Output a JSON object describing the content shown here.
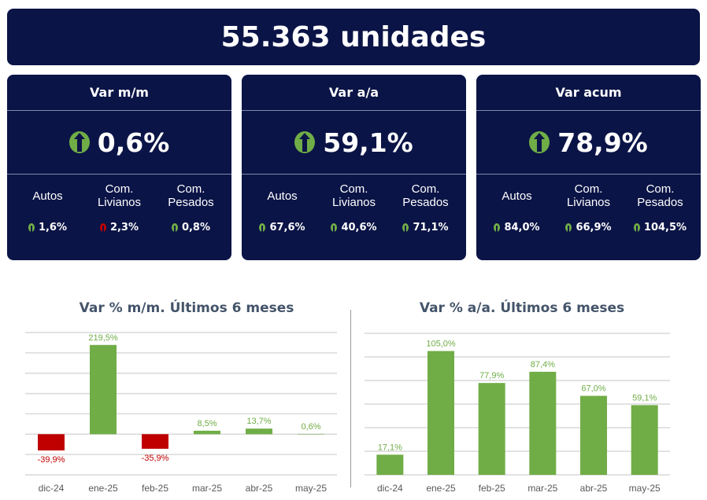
{
  "banner": {
    "title": "55.363 unidades"
  },
  "cards": [
    {
      "title": "Var m/m",
      "value": "0,6%",
      "trend": "up",
      "subs": [
        {
          "label": "Autos",
          "value": "1,6%",
          "trend": "up"
        },
        {
          "label": "Com. Livianos",
          "value": "2,3%",
          "trend": "down"
        },
        {
          "label": "Com. Pesados",
          "value": "0,8%",
          "trend": "up"
        }
      ]
    },
    {
      "title": "Var a/a",
      "value": "59,1%",
      "trend": "up",
      "subs": [
        {
          "label": "Autos",
          "value": "67,6%",
          "trend": "up"
        },
        {
          "label": "Com. Livianos",
          "value": "40,6%",
          "trend": "up"
        },
        {
          "label": "Com. Pesados",
          "value": "71,1%",
          "trend": "up"
        }
      ]
    },
    {
      "title": "Var acum",
      "value": "78,9%",
      "trend": "up",
      "subs": [
        {
          "label": "Autos",
          "value": "84,0%",
          "trend": "up"
        },
        {
          "label": "Com. Livianos",
          "value": "66,9%",
          "trend": "up"
        },
        {
          "label": "Com. Pesados",
          "value": "104,5%",
          "trend": "up"
        }
      ]
    }
  ],
  "colors": {
    "navy": "#0b1446",
    "positive": "#70ad47",
    "negative": "#c00000"
  },
  "chart_data": [
    {
      "type": "bar",
      "title": "Var % m/m. Últimos 6 meses",
      "categories": [
        "dic-24",
        "ene-25",
        "feb-25",
        "mar-25",
        "abr-25",
        "may-25"
      ],
      "values": [
        -39.9,
        219.5,
        -35.9,
        8.5,
        13.7,
        0.6
      ],
      "labels": [
        "-39,9%",
        "219,5%",
        "-35,9%",
        "8,5%",
        "13,7%",
        "0,6%"
      ],
      "ylim": [
        -100,
        250
      ],
      "grid_step": 50,
      "grid": true
    },
    {
      "type": "bar",
      "title": "Var % a/a. Últimos 6 meses",
      "categories": [
        "dic-24",
        "ene-25",
        "feb-25",
        "mar-25",
        "abr-25",
        "may-25"
      ],
      "values": [
        17.1,
        105.0,
        77.9,
        87.4,
        67.0,
        59.1
      ],
      "labels": [
        "17,1%",
        "105,0%",
        "77,9%",
        "87,4%",
        "67,0%",
        "59,1%"
      ],
      "ylim": [
        0,
        120
      ],
      "grid_step": 20,
      "grid": true
    }
  ]
}
